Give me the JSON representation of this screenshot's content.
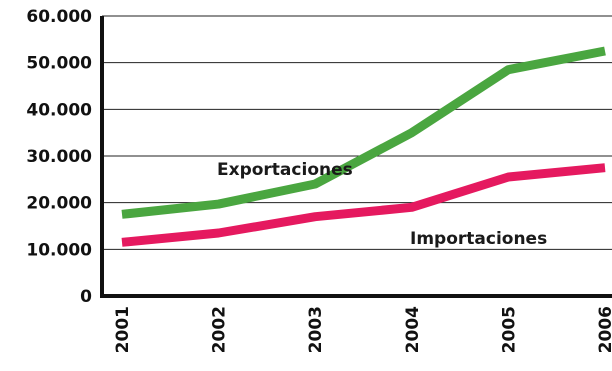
{
  "chart_data": {
    "type": "line",
    "title": "",
    "xlabel": "",
    "ylabel": "",
    "x": [
      "2001",
      "2002",
      "2003",
      "2004",
      "2005",
      "2006"
    ],
    "ylim": [
      0,
      60000
    ],
    "yticks": [
      0,
      10000,
      20000,
      30000,
      40000,
      50000,
      60000
    ],
    "ytick_labels": [
      "0",
      "10.000",
      "20.000",
      "30.000",
      "40.000",
      "50.000",
      "60.000"
    ],
    "grid": "horizontal",
    "legend": "inline labels",
    "series": [
      {
        "name": "Exportaciones",
        "color": "#4aa640",
        "values": [
          17500,
          19700,
          24000,
          35000,
          48500,
          52500
        ]
      },
      {
        "name": "Importaciones",
        "color": "#e5195f",
        "values": [
          11500,
          13500,
          17000,
          19000,
          25500,
          27500
        ]
      }
    ]
  }
}
